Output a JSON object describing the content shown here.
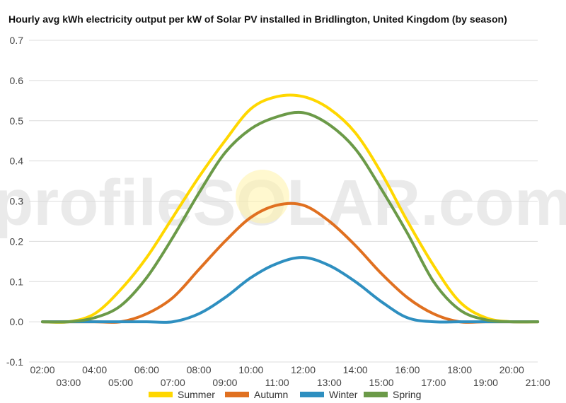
{
  "chart_data": {
    "type": "line",
    "title": "Hourly avg kWh electricity output per kW of Solar PV installed in Bridlington, United Kingdom (by season)",
    "xlabel": "",
    "ylabel": "",
    "x": [
      "02:00",
      "03:00",
      "04:00",
      "05:00",
      "06:00",
      "07:00",
      "08:00",
      "09:00",
      "10:00",
      "11:00",
      "12:00",
      "13:00",
      "14:00",
      "15:00",
      "16:00",
      "17:00",
      "18:00",
      "19:00",
      "20:00",
      "21:00"
    ],
    "x_ticks_upper": [
      "02:00",
      "04:00",
      "06:00",
      "08:00",
      "10:00",
      "12:00",
      "14:00",
      "16:00",
      "18:00",
      "20:00"
    ],
    "x_ticks_lower": [
      "03:00",
      "05:00",
      "07:00",
      "09:00",
      "11:00",
      "13:00",
      "15:00",
      "17:00",
      "19:00",
      "21:00"
    ],
    "ylim": [
      -0.1,
      0.7
    ],
    "y_ticks": [
      "-0.1",
      "0.0",
      "0.1",
      "0.2",
      "0.3",
      "0.4",
      "0.5",
      "0.6",
      "0.7"
    ],
    "grid": true,
    "legend_position": "bottom",
    "watermark": "profileSOLAR.com",
    "series": [
      {
        "name": "Summer",
        "color": "#FFD700",
        "values": [
          0,
          0,
          0.02,
          0.08,
          0.16,
          0.26,
          0.36,
          0.45,
          0.53,
          0.56,
          0.56,
          0.53,
          0.47,
          0.37,
          0.25,
          0.14,
          0.05,
          0.01,
          0,
          0
        ]
      },
      {
        "name": "Autumn",
        "color": "#E07020",
        "values": [
          0,
          0,
          0,
          0,
          0.02,
          0.06,
          0.13,
          0.2,
          0.26,
          0.29,
          0.29,
          0.25,
          0.19,
          0.12,
          0.06,
          0.02,
          0,
          0,
          0,
          0
        ]
      },
      {
        "name": "Winter",
        "color": "#2E8FC0",
        "values": [
          0,
          0,
          0,
          0,
          0,
          0,
          0.02,
          0.06,
          0.11,
          0.145,
          0.16,
          0.14,
          0.1,
          0.05,
          0.01,
          0,
          0,
          0,
          0,
          0
        ]
      },
      {
        "name": "Spring",
        "color": "#6B9A48",
        "values": [
          0,
          0,
          0.01,
          0.04,
          0.11,
          0.21,
          0.32,
          0.42,
          0.48,
          0.51,
          0.52,
          0.49,
          0.43,
          0.33,
          0.22,
          0.1,
          0.03,
          0.005,
          0,
          0
        ]
      }
    ]
  }
}
